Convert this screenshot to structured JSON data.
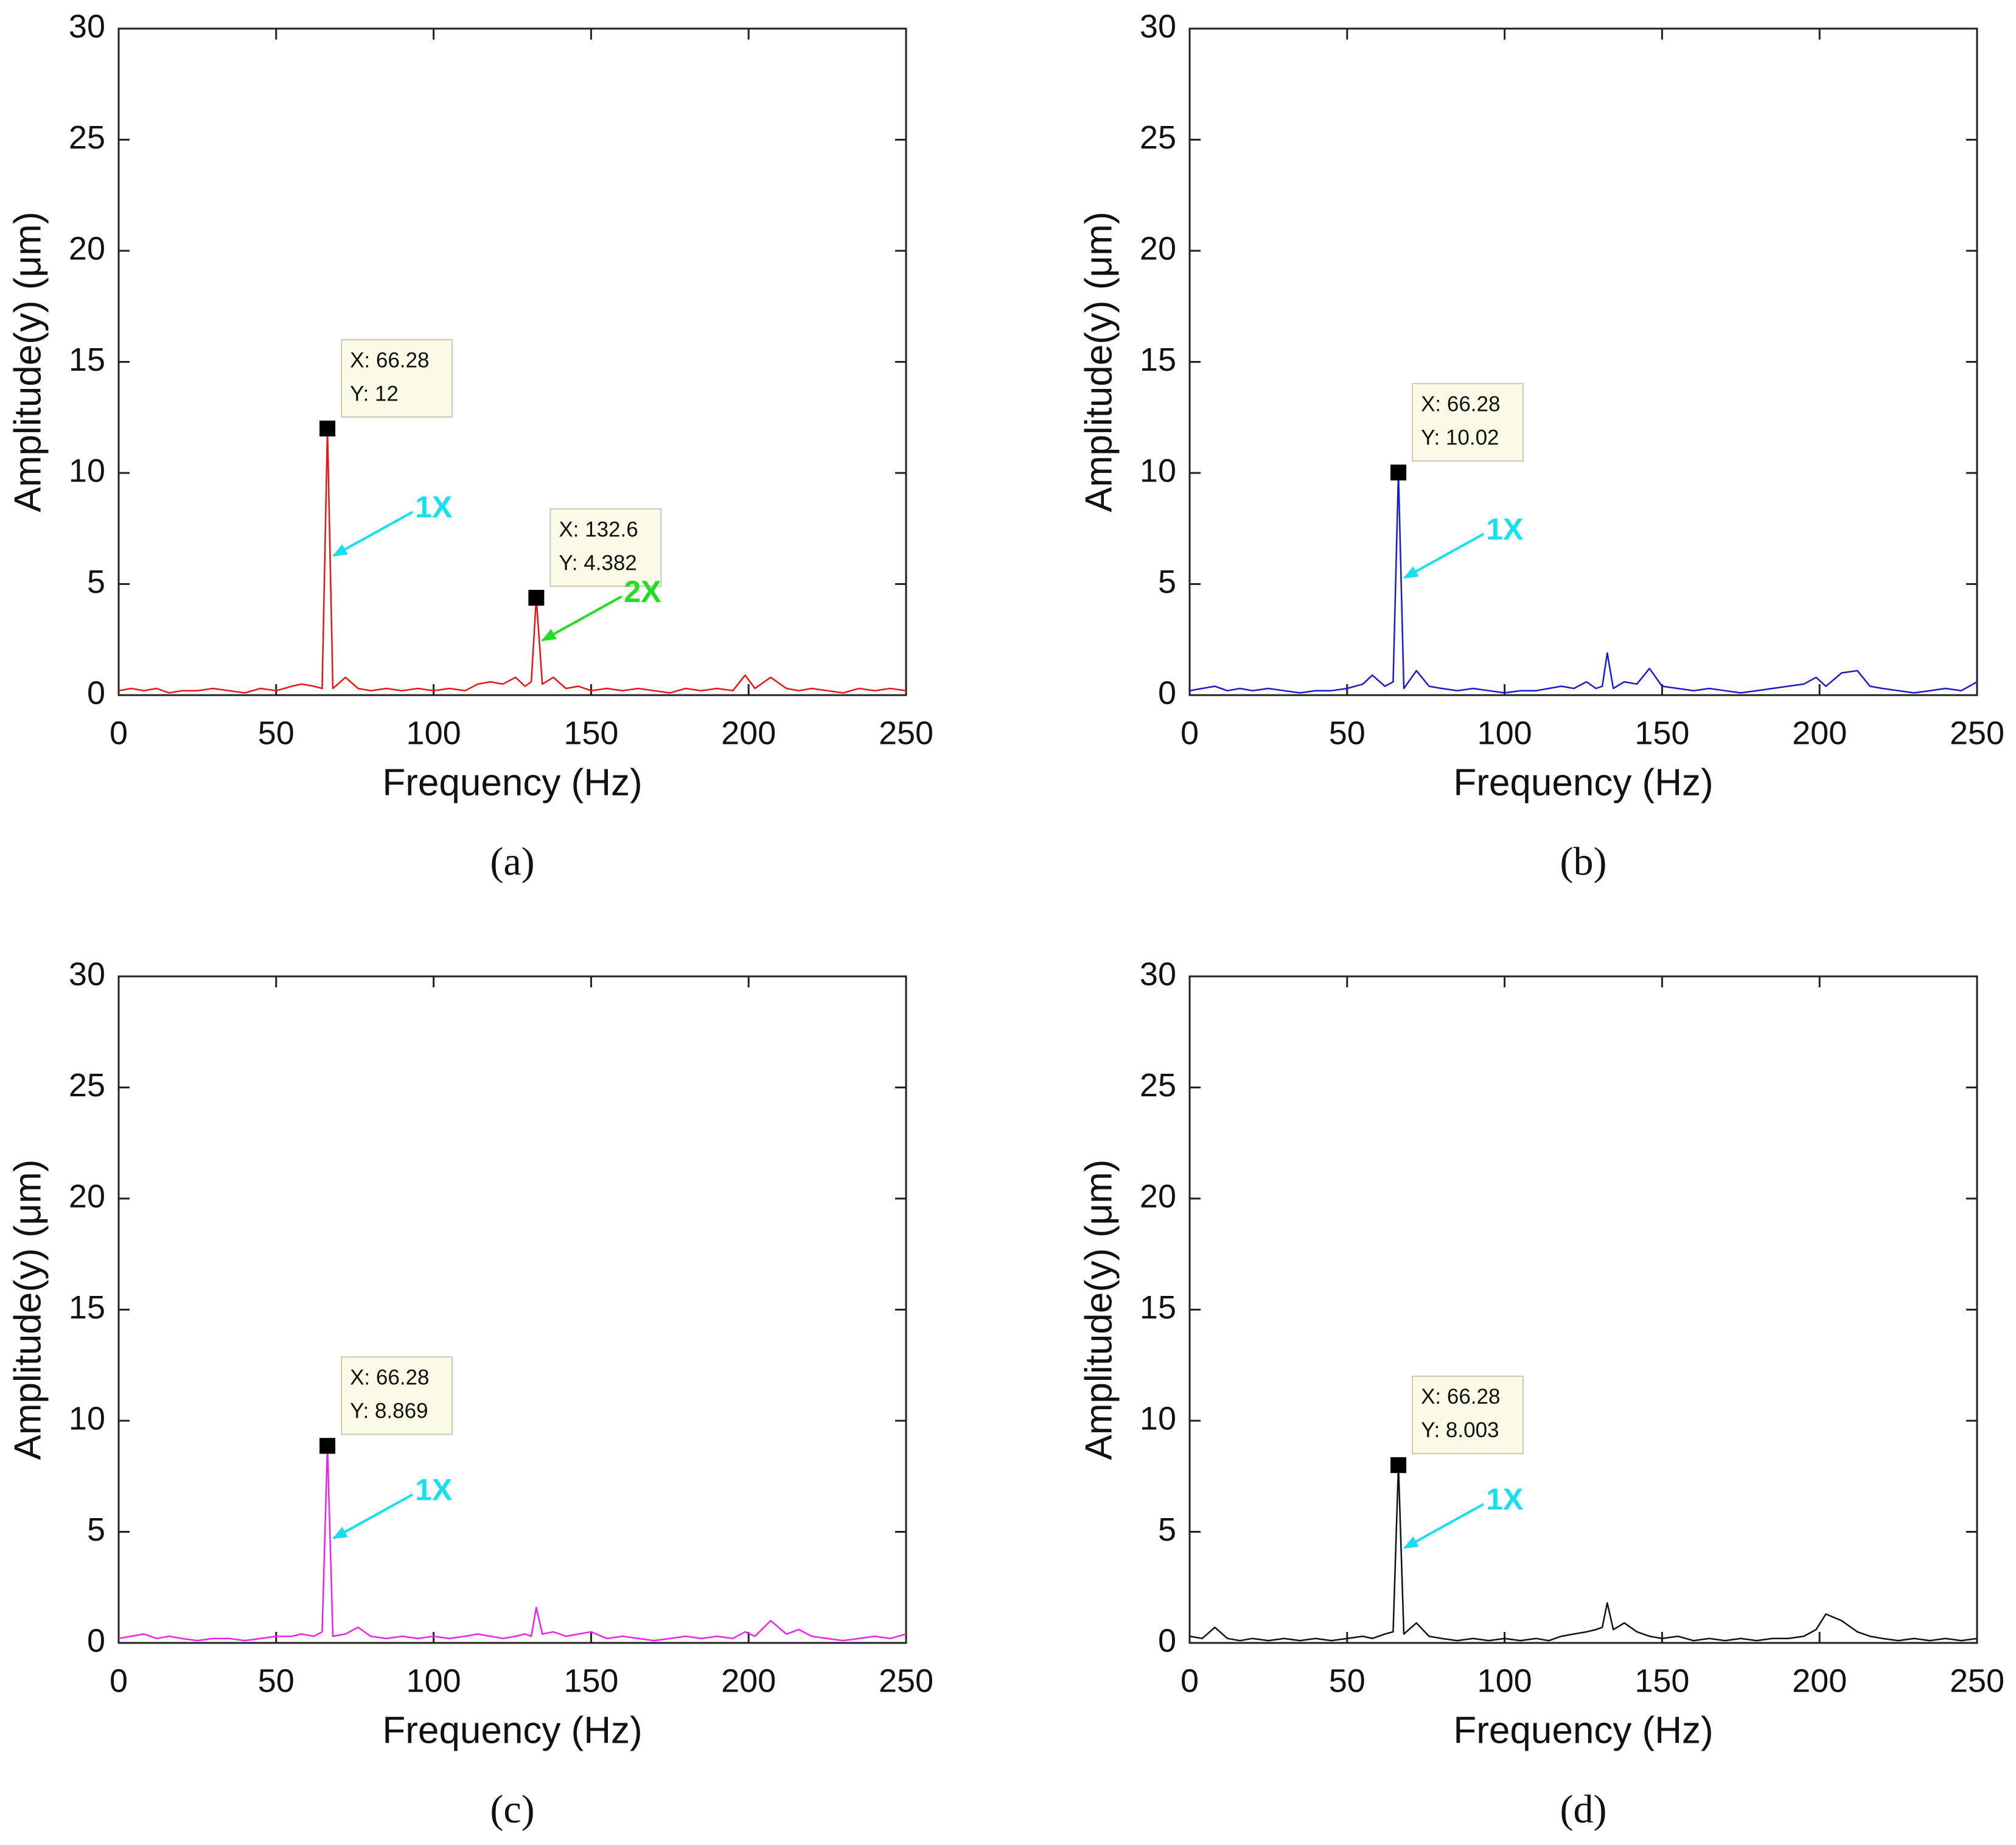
{
  "chart_data": [
    {
      "type": "line",
      "panel": "(a)",
      "x_label": "Frequency (Hz)",
      "y_label": "Amplitude(y) (μm)",
      "color": "#e81515",
      "xlim": [
        0,
        250
      ],
      "xticks": [
        0,
        50,
        100,
        150,
        200,
        250
      ],
      "ylim": [
        0,
        30
      ],
      "yticks": [
        0,
        5,
        10,
        15,
        20,
        25,
        30
      ],
      "x": [
        0,
        4,
        8,
        12,
        16,
        20,
        25,
        30,
        35,
        40,
        45,
        50,
        55,
        58,
        62,
        64.6,
        66.28,
        68,
        72,
        76,
        80,
        85,
        90,
        95,
        100,
        105,
        110,
        114,
        118,
        122,
        126,
        129,
        131,
        132.6,
        134.5,
        138,
        142,
        146,
        150,
        155,
        160,
        165,
        170,
        175,
        180,
        185,
        190,
        195,
        198.9,
        202,
        207,
        212,
        216,
        220,
        225,
        230,
        235,
        240,
        245,
        250
      ],
      "values": [
        0.2,
        0.3,
        0.2,
        0.3,
        0.1,
        0.2,
        0.2,
        0.3,
        0.2,
        0.1,
        0.3,
        0.2,
        0.4,
        0.5,
        0.4,
        0.3,
        12,
        0.3,
        0.8,
        0.3,
        0.2,
        0.3,
        0.2,
        0.3,
        0.2,
        0.3,
        0.2,
        0.5,
        0.6,
        0.5,
        0.8,
        0.4,
        0.6,
        4.382,
        0.5,
        0.8,
        0.3,
        0.4,
        0.2,
        0.3,
        0.2,
        0.3,
        0.2,
        0.1,
        0.3,
        0.2,
        0.3,
        0.2,
        0.9,
        0.3,
        0.8,
        0.3,
        0.2,
        0.3,
        0.2,
        0.1,
        0.3,
        0.2,
        0.3,
        0.2
      ],
      "datatips": [
        {
          "x": 66.28,
          "y": 12,
          "label_x": "X: 66.28",
          "label_y": "Y: 12",
          "arrow_text": "1X",
          "arrow_color": "#17e0ee"
        },
        {
          "x": 132.6,
          "y": 4.382,
          "label_x": "X: 132.6",
          "label_y": "Y: 4.382",
          "arrow_text": "2X",
          "arrow_color": "#22dd22"
        }
      ]
    },
    {
      "type": "line",
      "panel": "(b)",
      "x_label": "Frequency (Hz)",
      "y_label": "Amplitude(y) (μm)",
      "color": "#1a1acc",
      "xlim": [
        0,
        250
      ],
      "xticks": [
        0,
        50,
        100,
        150,
        200,
        250
      ],
      "ylim": [
        0,
        30
      ],
      "yticks": [
        0,
        5,
        10,
        15,
        20,
        25,
        30
      ],
      "x": [
        0,
        4,
        8,
        12,
        16,
        20,
        25,
        30,
        35,
        40,
        45,
        50,
        55,
        58,
        62,
        64.6,
        66.28,
        68,
        72,
        76,
        80,
        85,
        90,
        95,
        100,
        105,
        110,
        114,
        118,
        122,
        126,
        129,
        131,
        132.6,
        134.5,
        138,
        142,
        146,
        150,
        155,
        160,
        165,
        170,
        175,
        180,
        185,
        190,
        195,
        198.9,
        202,
        207,
        212,
        216,
        220,
        225,
        230,
        235,
        240,
        245,
        250
      ],
      "values": [
        0.2,
        0.3,
        0.4,
        0.2,
        0.3,
        0.2,
        0.3,
        0.2,
        0.1,
        0.2,
        0.2,
        0.3,
        0.5,
        0.9,
        0.4,
        0.6,
        10.02,
        0.3,
        1.1,
        0.4,
        0.3,
        0.2,
        0.3,
        0.2,
        0.1,
        0.2,
        0.2,
        0.3,
        0.4,
        0.3,
        0.6,
        0.3,
        0.4,
        1.9,
        0.3,
        0.6,
        0.5,
        1.2,
        0.4,
        0.3,
        0.2,
        0.3,
        0.2,
        0.1,
        0.2,
        0.3,
        0.4,
        0.5,
        0.8,
        0.4,
        1.0,
        1.1,
        0.4,
        0.3,
        0.2,
        0.1,
        0.2,
        0.3,
        0.2,
        0.6
      ],
      "datatips": [
        {
          "x": 66.28,
          "y": 10.02,
          "label_x": "X: 66.28",
          "label_y": "Y: 10.02",
          "arrow_text": "1X",
          "arrow_color": "#17e0ee"
        }
      ]
    },
    {
      "type": "line",
      "panel": "(c)",
      "x_label": "Frequency (Hz)",
      "y_label": "Amplitude(y) (μm)",
      "color": "#ee22ee",
      "xlim": [
        0,
        250
      ],
      "xticks": [
        0,
        50,
        100,
        150,
        200,
        250
      ],
      "ylim": [
        0,
        30
      ],
      "yticks": [
        0,
        5,
        10,
        15,
        20,
        25,
        30
      ],
      "x": [
        0,
        4,
        8,
        12,
        16,
        20,
        25,
        30,
        35,
        40,
        45,
        50,
        55,
        58,
        62,
        64.6,
        66.28,
        68,
        72,
        76,
        80,
        85,
        90,
        95,
        100,
        105,
        110,
        114,
        118,
        122,
        126,
        129,
        131,
        132.6,
        134.5,
        138,
        142,
        146,
        150,
        155,
        160,
        165,
        170,
        175,
        180,
        185,
        190,
        195,
        198.9,
        202,
        207,
        212,
        216,
        220,
        225,
        230,
        235,
        240,
        245,
        250
      ],
      "values": [
        0.2,
        0.3,
        0.4,
        0.2,
        0.3,
        0.2,
        0.1,
        0.2,
        0.2,
        0.1,
        0.2,
        0.3,
        0.3,
        0.4,
        0.3,
        0.5,
        8.869,
        0.3,
        0.4,
        0.7,
        0.3,
        0.2,
        0.3,
        0.2,
        0.3,
        0.2,
        0.3,
        0.4,
        0.3,
        0.2,
        0.3,
        0.4,
        0.3,
        1.6,
        0.4,
        0.5,
        0.3,
        0.4,
        0.5,
        0.2,
        0.3,
        0.2,
        0.1,
        0.2,
        0.3,
        0.2,
        0.3,
        0.2,
        0.5,
        0.3,
        1.0,
        0.4,
        0.6,
        0.3,
        0.2,
        0.1,
        0.2,
        0.3,
        0.2,
        0.4
      ],
      "datatips": [
        {
          "x": 66.28,
          "y": 8.869,
          "label_x": "X: 66.28",
          "label_y": "Y: 8.869",
          "arrow_text": "1X",
          "arrow_color": "#17e0ee"
        }
      ]
    },
    {
      "type": "line",
      "panel": "(d)",
      "x_label": "Frequency (Hz)",
      "y_label": "Amplitude(y) (μm)",
      "color": "#111111",
      "xlim": [
        0,
        250
      ],
      "xticks": [
        0,
        50,
        100,
        150,
        200,
        250
      ],
      "ylim": [
        0,
        30
      ],
      "yticks": [
        0,
        5,
        10,
        15,
        20,
        25,
        30
      ],
      "x": [
        0,
        4,
        8,
        12,
        16,
        20,
        25,
        30,
        35,
        40,
        45,
        50,
        55,
        58,
        62,
        64.6,
        66.28,
        68,
        72,
        76,
        80,
        85,
        90,
        95,
        100,
        105,
        110,
        114,
        118,
        122,
        126,
        129,
        131,
        132.6,
        134.5,
        138,
        142,
        146,
        150,
        155,
        160,
        165,
        170,
        175,
        180,
        185,
        190,
        195,
        198.9,
        202,
        207,
        212,
        216,
        220,
        225,
        230,
        235,
        240,
        245,
        250
      ],
      "values": [
        0.3,
        0.2,
        0.7,
        0.2,
        0.1,
        0.2,
        0.1,
        0.2,
        0.1,
        0.2,
        0.1,
        0.2,
        0.3,
        0.2,
        0.4,
        0.5,
        8.003,
        0.4,
        0.9,
        0.3,
        0.2,
        0.1,
        0.2,
        0.1,
        0.2,
        0.1,
        0.2,
        0.1,
        0.3,
        0.4,
        0.5,
        0.6,
        0.7,
        1.8,
        0.6,
        0.9,
        0.5,
        0.3,
        0.2,
        0.3,
        0.1,
        0.2,
        0.1,
        0.2,
        0.1,
        0.2,
        0.2,
        0.3,
        0.6,
        1.3,
        1.0,
        0.5,
        0.3,
        0.2,
        0.1,
        0.2,
        0.1,
        0.2,
        0.1,
        0.2
      ],
      "datatips": [
        {
          "x": 66.28,
          "y": 8.003,
          "label_x": "X: 66.28",
          "label_y": "Y: 8.003",
          "arrow_text": "1X",
          "arrow_color": "#17e0ee"
        }
      ]
    }
  ]
}
